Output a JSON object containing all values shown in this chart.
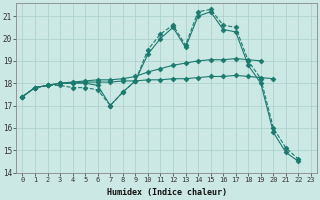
{
  "xlabel": "Humidex (Indice chaleur)",
  "xlim": [
    -0.5,
    23.5
  ],
  "ylim": [
    14,
    21.6
  ],
  "yticks": [
    14,
    15,
    16,
    17,
    18,
    19,
    20,
    21
  ],
  "xticks": [
    0,
    1,
    2,
    3,
    4,
    5,
    6,
    7,
    8,
    9,
    10,
    11,
    12,
    13,
    14,
    15,
    16,
    17,
    18,
    19,
    20,
    21,
    22,
    23
  ],
  "bg_color": "#cce8e4",
  "grid_color": "#aacfcb",
  "line_color": "#1a7a6e",
  "series": [
    {
      "x": [
        0,
        1,
        2,
        3,
        4,
        5,
        6,
        7,
        8,
        9,
        10,
        11,
        12,
        13,
        14,
        15,
        16,
        17,
        18,
        19,
        20,
        21,
        22
      ],
      "y": [
        17.4,
        17.8,
        17.9,
        17.9,
        17.8,
        17.8,
        17.7,
        17.0,
        17.6,
        18.1,
        19.5,
        20.2,
        20.6,
        19.7,
        21.2,
        21.3,
        20.6,
        20.5,
        19.0,
        18.2,
        16.0,
        15.1,
        14.6
      ],
      "marker": "D",
      "markersize": 2.5,
      "linestyle": "--"
    },
    {
      "x": [
        0,
        1,
        2,
        3,
        4,
        5,
        6,
        7,
        8,
        9,
        10,
        11,
        12,
        13,
        14,
        15,
        16,
        17,
        18,
        19,
        20
      ],
      "y": [
        17.4,
        17.8,
        17.9,
        18.0,
        18.0,
        18.05,
        18.05,
        18.05,
        18.1,
        18.1,
        18.15,
        18.15,
        18.2,
        18.2,
        18.25,
        18.3,
        18.3,
        18.35,
        18.3,
        18.25,
        18.2
      ],
      "marker": "D",
      "markersize": 2.5,
      "linestyle": "-"
    },
    {
      "x": [
        0,
        1,
        2,
        3,
        4,
        5,
        6,
        7,
        8,
        9,
        10,
        11,
        12,
        13,
        14,
        15,
        16,
        17,
        18,
        19
      ],
      "y": [
        17.4,
        17.8,
        17.9,
        18.0,
        18.05,
        18.1,
        18.15,
        18.15,
        18.2,
        18.3,
        18.5,
        18.65,
        18.8,
        18.9,
        19.0,
        19.05,
        19.05,
        19.1,
        19.05,
        19.0
      ],
      "marker": "D",
      "markersize": 2.5,
      "linestyle": "-"
    },
    {
      "x": [
        0,
        1,
        2,
        3,
        4,
        5,
        6,
        7,
        8,
        9,
        10,
        11,
        12,
        13,
        14,
        15,
        16,
        17,
        18,
        19,
        20,
        21,
        22
      ],
      "y": [
        17.4,
        17.8,
        17.9,
        18.0,
        18.0,
        18.0,
        17.9,
        17.0,
        17.6,
        18.1,
        19.3,
        20.0,
        20.5,
        19.6,
        21.0,
        21.2,
        20.4,
        20.3,
        18.8,
        18.0,
        15.8,
        14.9,
        14.5
      ],
      "marker": "D",
      "markersize": 2.5,
      "linestyle": "-"
    }
  ]
}
